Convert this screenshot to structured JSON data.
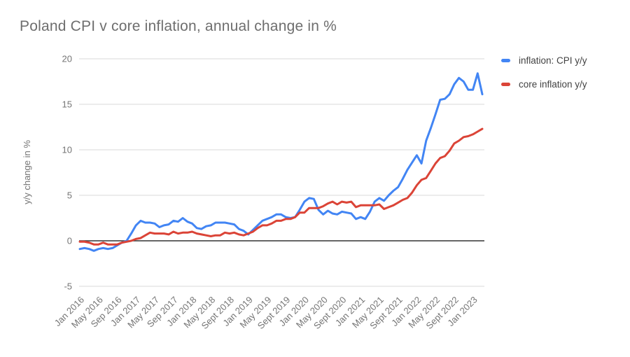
{
  "title": "Poland CPI v core inflation, annual change in %",
  "colors": {
    "cpi_line": "#4285f4",
    "core_line": "#db4437",
    "gridline": "#d9d9d9",
    "zero_line": "#333333",
    "axis_text": "#757575",
    "legend_text": "#424242",
    "title_text": "#6e6e6e",
    "background": "#ffffff"
  },
  "legend": {
    "position": "right",
    "items": [
      {
        "label": "inflation: CPI y/y",
        "color": "#4285f4"
      },
      {
        "label": "core inflation y/y",
        "color": "#db4437"
      }
    ]
  },
  "chart_data": {
    "type": "line",
    "title": "Poland CPI v core inflation, annual change in %",
    "ylabel": "y/y change in %",
    "xlabel": "",
    "ylim": [
      -5,
      20
    ],
    "yticks": [
      20,
      15,
      10,
      5,
      0,
      -5
    ],
    "grid": "horizontal",
    "legend_position": "right",
    "x_start": "Jan 2016",
    "x_frequency": "monthly",
    "x_tick_every_n_months": 4,
    "x_tick_labels": [
      "Jan 2016",
      "May 2016",
      "Sep 2016",
      "Jan 2017",
      "May 2017",
      "Sep 2017",
      "Jan 2018",
      "May 2018",
      "Sept 2018",
      "Jan 2019",
      "May 2019",
      "Sept 2019",
      "Jan 2020",
      "May 2020",
      "Sept 2020",
      "Jan 2021",
      "May 2021",
      "Sept 2021",
      "Jan 2022",
      "May 2022",
      "Sept 2022",
      "Jan 2023"
    ],
    "series": [
      {
        "key": "cpi",
        "name": "inflation: CPI y/y",
        "color": "#4285f4",
        "values": [
          -0.9,
          -0.8,
          -0.9,
          -1.1,
          -0.9,
          -0.8,
          -0.9,
          -0.8,
          -0.5,
          -0.2,
          0.0,
          0.8,
          1.7,
          2.2,
          2.0,
          2.0,
          1.9,
          1.5,
          1.7,
          1.8,
          2.2,
          2.1,
          2.5,
          2.1,
          1.9,
          1.4,
          1.3,
          1.6,
          1.7,
          2.0,
          2.0,
          2.0,
          1.9,
          1.8,
          1.3,
          1.1,
          0.7,
          1.2,
          1.7,
          2.2,
          2.4,
          2.6,
          2.9,
          2.9,
          2.6,
          2.5,
          2.6,
          3.4,
          4.3,
          4.7,
          4.6,
          3.4,
          2.9,
          3.3,
          3.0,
          2.9,
          3.2,
          3.1,
          3.0,
          2.4,
          2.6,
          2.4,
          3.2,
          4.3,
          4.7,
          4.4,
          5.0,
          5.5,
          5.9,
          6.8,
          7.8,
          8.6,
          9.4,
          8.5,
          11.0,
          12.4,
          13.9,
          15.5,
          15.6,
          16.1,
          17.2,
          17.9,
          17.5,
          16.6,
          16.6,
          18.4,
          16.1
        ]
      },
      {
        "key": "core",
        "name": "core inflation y/y",
        "color": "#db4437",
        "values": [
          -0.1,
          -0.1,
          -0.2,
          -0.4,
          -0.4,
          -0.2,
          -0.4,
          -0.4,
          -0.4,
          -0.2,
          -0.1,
          0.0,
          0.2,
          0.3,
          0.6,
          0.9,
          0.8,
          0.8,
          0.8,
          0.7,
          1.0,
          0.8,
          0.9,
          0.9,
          1.0,
          0.8,
          0.7,
          0.6,
          0.5,
          0.6,
          0.6,
          0.9,
          0.8,
          0.9,
          0.7,
          0.6,
          0.8,
          1.0,
          1.4,
          1.7,
          1.7,
          1.9,
          2.2,
          2.2,
          2.4,
          2.4,
          2.6,
          3.1,
          3.1,
          3.6,
          3.6,
          3.6,
          3.8,
          4.1,
          4.3,
          4.0,
          4.3,
          4.2,
          4.3,
          3.7,
          3.9,
          3.9,
          3.9,
          3.9,
          4.0,
          3.5,
          3.7,
          3.9,
          4.2,
          4.5,
          4.7,
          5.3,
          6.1,
          6.7,
          6.9,
          7.7,
          8.5,
          9.1,
          9.3,
          9.9,
          10.7,
          11.0,
          11.4,
          11.5,
          11.7,
          12.0,
          12.3
        ]
      }
    ]
  }
}
